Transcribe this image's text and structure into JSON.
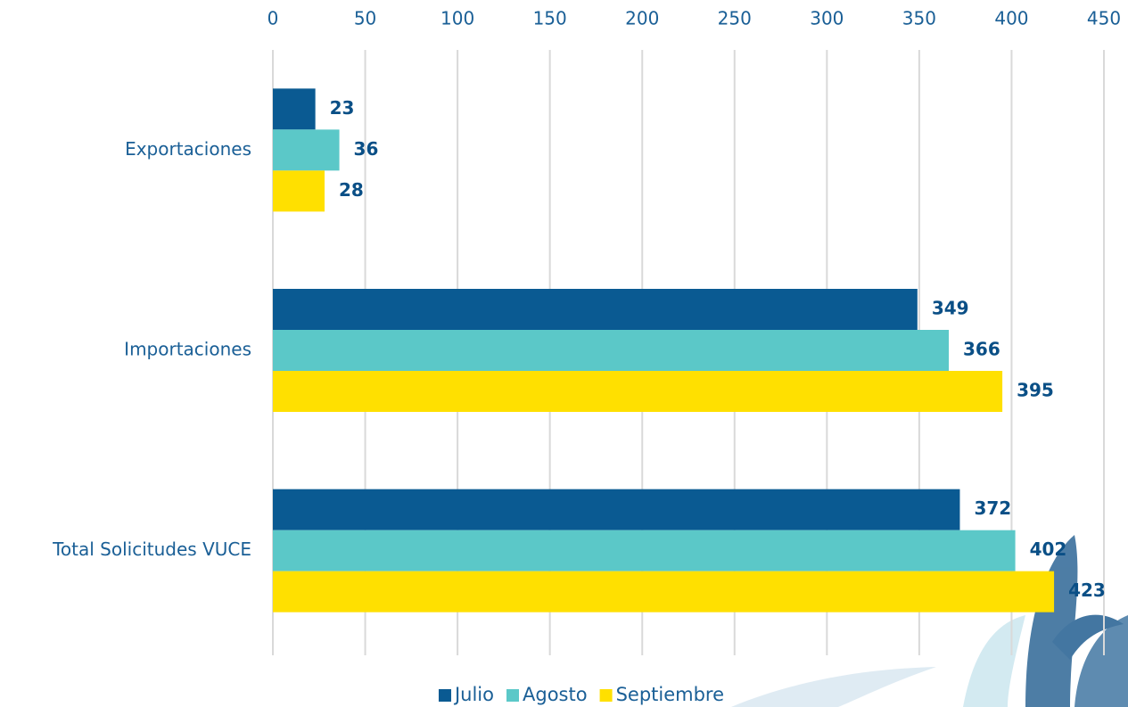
{
  "chart_data": {
    "type": "bar",
    "orientation": "horizontal",
    "categories": [
      "Exportaciones",
      "Importaciones",
      "Total Solicitudes VUCE"
    ],
    "series": [
      {
        "name": "Julio",
        "color": "#0a5a92",
        "values": [
          23,
          349,
          372
        ]
      },
      {
        "name": "Agosto",
        "color": "#5bc8c8",
        "values": [
          36,
          366,
          402
        ]
      },
      {
        "name": "Septiembre",
        "color": "#ffe000",
        "values": [
          28,
          395,
          423
        ]
      }
    ],
    "xlim": [
      0,
      450
    ],
    "xticks": [
      0,
      50,
      100,
      150,
      200,
      250,
      300,
      350,
      400,
      450
    ],
    "grid": true,
    "legend": "bottom"
  }
}
